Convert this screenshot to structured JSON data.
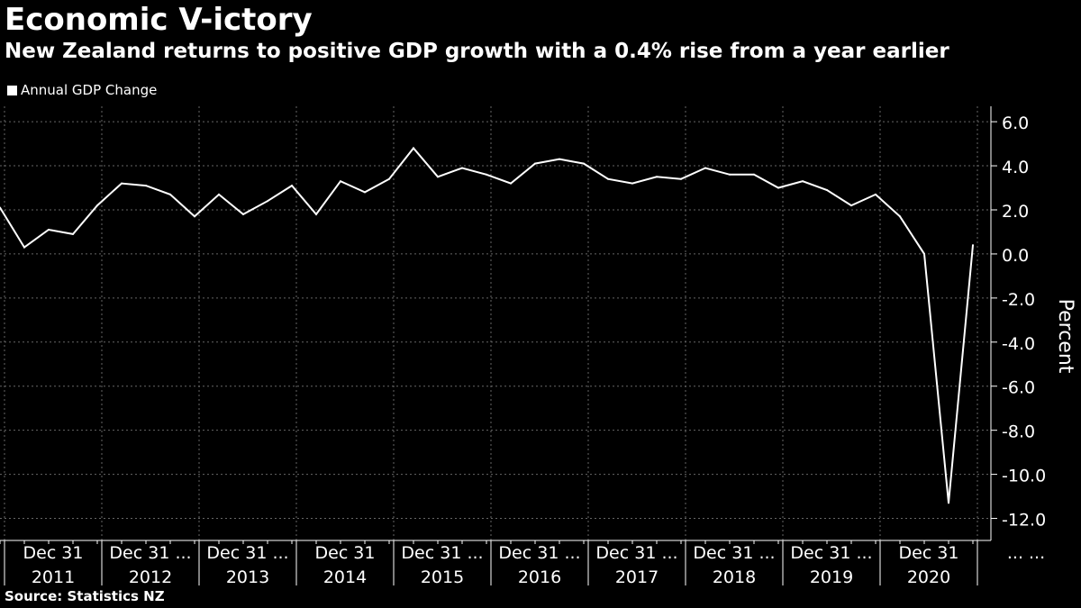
{
  "title": "Economic V-ictory",
  "subtitle": "New Zealand returns to positive GDP growth with a 0.4% rise from a year earlier",
  "source": "Source:  Statistics NZ",
  "chart_data": {
    "type": "line",
    "series": [
      {
        "name": "Annual GDP Change",
        "color": "#ffffff",
        "values": [
          2.1,
          0.3,
          1.1,
          0.9,
          2.2,
          3.2,
          3.1,
          2.7,
          1.7,
          2.7,
          1.8,
          2.4,
          3.1,
          1.8,
          3.3,
          2.8,
          3.4,
          4.8,
          3.5,
          3.9,
          3.6,
          3.2,
          4.1,
          4.3,
          4.1,
          3.4,
          3.2,
          3.5,
          3.4,
          3.9,
          3.6,
          3.6,
          3.0,
          3.3,
          2.9,
          2.2,
          2.7,
          1.7,
          0.0,
          -11.3,
          0.4
        ]
      }
    ],
    "ylabel": "Percent",
    "ylim": [
      -13.0,
      6.7
    ],
    "yticks": [
      6.0,
      4.0,
      2.0,
      0.0,
      -2.0,
      -4.0,
      -6.0,
      -8.0,
      -10.0,
      -12.0
    ],
    "ytick_labels": [
      "6.0",
      "4.0",
      "2.0",
      "0.0",
      "-2.0",
      "-4.0",
      "-6.0",
      "-8.0",
      "-10.0",
      "-12.0"
    ],
    "quarter_labels": [
      "Dec 31",
      "Dec 31 ...",
      "Dec 31 ...",
      "Dec 31",
      "Dec 31 ...",
      "Dec 31 ...",
      "Dec 31 ...",
      "Dec 31 ...",
      "Dec 31 ...",
      "Dec 31",
      "... ..."
    ],
    "years": [
      "2011",
      "2012",
      "2013",
      "2014",
      "2015",
      "2016",
      "2017",
      "2018",
      "2019",
      "2020"
    ],
    "grid": true,
    "legend": "top-left"
  }
}
